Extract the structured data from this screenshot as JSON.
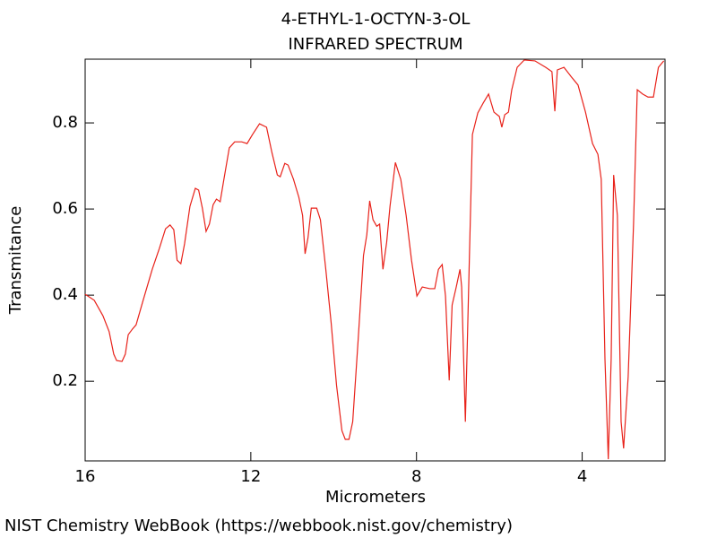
{
  "chart_data": {
    "type": "line",
    "title": "4-ETHYL-1-OCTYN-3-OL",
    "subtitle": "INFRARED SPECTRUM",
    "xlabel": "Micrometers",
    "ylabel": "Transmitance",
    "footer": "NIST Chemistry WebBook (https://webbook.nist.gov/chemistry)",
    "color": "#e8221a",
    "xlim": [
      16,
      2.0
    ],
    "xticks": [
      16,
      12,
      8,
      4
    ],
    "ylim": [
      0.015,
      0.948
    ],
    "yticks": [
      0.2,
      0.4,
      0.6,
      0.8
    ],
    "x": [
      16,
      15.78,
      15.57,
      15.42,
      15.31,
      15.24,
      15.11,
      15.03,
      14.96,
      14.86,
      14.77,
      14.6,
      14.38,
      14.21,
      14.06,
      13.95,
      13.86,
      13.78,
      13.69,
      13.6,
      13.47,
      13.34,
      13.26,
      13.17,
      13.08,
      13.0,
      12.91,
      12.83,
      12.74,
      12.65,
      12.52,
      12.39,
      12.22,
      12.09,
      11.96,
      11.79,
      11.62,
      11.49,
      11.36,
      11.29,
      11.18,
      11.1,
      10.97,
      10.84,
      10.75,
      10.69,
      10.62,
      10.54,
      10.41,
      10.32,
      10.19,
      10.06,
      9.93,
      9.8,
      9.72,
      9.63,
      9.54,
      9.41,
      9.28,
      9.2,
      9.13,
      9.05,
      8.96,
      8.89,
      8.81,
      8.72,
      8.64,
      8.51,
      8.38,
      8.25,
      8.12,
      7.99,
      7.86,
      7.68,
      7.56,
      7.47,
      7.38,
      7.3,
      7.21,
      7.14,
      7.04,
      6.95,
      6.91,
      6.82,
      6.73,
      6.65,
      6.52,
      6.39,
      6.26,
      6.13,
      6.0,
      5.94,
      5.87,
      5.78,
      5.7,
      5.57,
      5.4,
      5.14,
      4.88,
      4.73,
      4.66,
      4.6,
      4.44,
      4.27,
      4.1,
      3.92,
      3.75,
      3.62,
      3.54,
      3.45,
      3.37,
      3.3,
      3.24,
      3.15,
      3.06,
      3.0,
      2.89,
      2.76,
      2.67,
      2.54,
      2.41,
      2.28,
      2.16,
      2.03
    ],
    "values": [
      0.402,
      0.388,
      0.352,
      0.315,
      0.263,
      0.248,
      0.246,
      0.263,
      0.308,
      0.321,
      0.331,
      0.388,
      0.46,
      0.508,
      0.554,
      0.563,
      0.552,
      0.481,
      0.473,
      0.519,
      0.606,
      0.648,
      0.644,
      0.602,
      0.548,
      0.565,
      0.61,
      0.623,
      0.617,
      0.669,
      0.742,
      0.756,
      0.756,
      0.752,
      0.773,
      0.798,
      0.79,
      0.731,
      0.679,
      0.675,
      0.706,
      0.702,
      0.669,
      0.627,
      0.585,
      0.496,
      0.533,
      0.602,
      0.602,
      0.575,
      0.46,
      0.335,
      0.19,
      0.085,
      0.065,
      0.065,
      0.106,
      0.294,
      0.492,
      0.54,
      0.619,
      0.575,
      0.56,
      0.565,
      0.46,
      0.523,
      0.606,
      0.708,
      0.669,
      0.585,
      0.481,
      0.398,
      0.419,
      0.415,
      0.415,
      0.46,
      0.471,
      0.398,
      0.202,
      0.377,
      0.419,
      0.46,
      0.419,
      0.106,
      0.46,
      0.773,
      0.823,
      0.846,
      0.867,
      0.825,
      0.815,
      0.79,
      0.819,
      0.825,
      0.877,
      0.929,
      0.946,
      0.944,
      0.929,
      0.919,
      0.827,
      0.923,
      0.929,
      0.908,
      0.888,
      0.825,
      0.752,
      0.727,
      0.669,
      0.252,
      0.019,
      0.252,
      0.679,
      0.585,
      0.106,
      0.044,
      0.21,
      0.565,
      0.877,
      0.867,
      0.86,
      0.86,
      0.929,
      0.944
    ]
  }
}
